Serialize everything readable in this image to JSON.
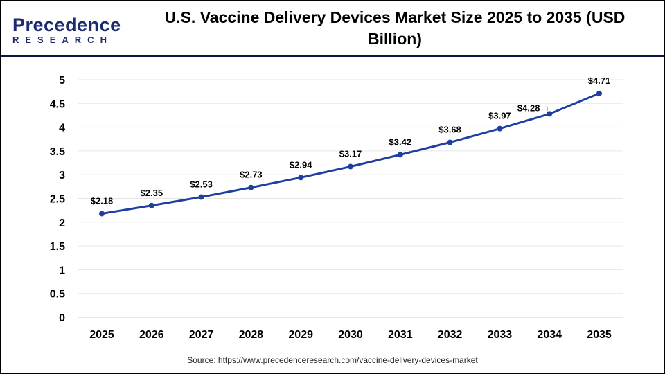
{
  "logo": {
    "line1": "Precedence",
    "line2": "RESEARCH"
  },
  "title": "U.S. Vaccine Delivery Devices Market Size 2025 to 2035 (USD Billion)",
  "source": "Source: https://www.precedenceresearch.com/vaccine-delivery-devices-market",
  "colors": {
    "line": "#1f3fa0",
    "header_rule": "#0d1640"
  },
  "chart_data": {
    "type": "line",
    "title": "U.S. Vaccine Delivery Devices Market Size 2025 to 2035 (USD Billion)",
    "x": [
      "2025",
      "2026",
      "2027",
      "2028",
      "2029",
      "2030",
      "2031",
      "2032",
      "2033",
      "2034",
      "2035"
    ],
    "series": [
      {
        "values": [
          2.18,
          2.35,
          2.53,
          2.73,
          2.94,
          3.17,
          3.42,
          3.68,
          3.97,
          4.28,
          4.71
        ],
        "labels": [
          "$2.18",
          "$2.35",
          "$2.53",
          "$2.73",
          "$2.94",
          "$3.17",
          "$3.42",
          "$3.68",
          "$3.97",
          "$4.28",
          "$4.71"
        ]
      }
    ],
    "ylim": [
      0,
      5
    ],
    "yticks": [
      "0",
      "0.5",
      "1",
      "1.5",
      "2",
      "2.5",
      "3",
      "3.5",
      "4",
      "4.5",
      "5"
    ],
    "grid": true,
    "markers": true
  }
}
